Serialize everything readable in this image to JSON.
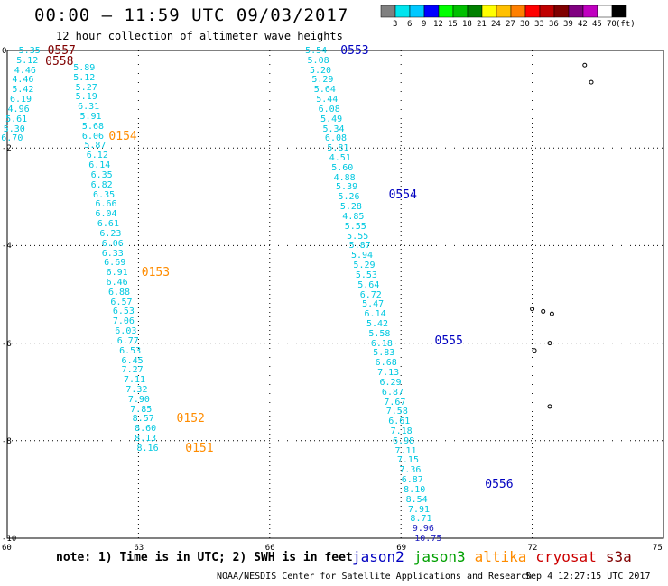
{
  "title": "00:00 – 11:59 UTC 09/03/2017",
  "subtitle": "12 hour collection of altimeter wave heights",
  "colorbar": {
    "unit_label": "(ft)",
    "ticks": [
      "3",
      "6",
      "9",
      "12",
      "15",
      "18",
      "21",
      "24",
      "27",
      "30",
      "33",
      "36",
      "39",
      "42",
      "45",
      "70"
    ],
    "colors": [
      "#808080",
      "#00e5ee",
      "#00c8ff",
      "#0000ff",
      "#00ff00",
      "#00c000",
      "#008000",
      "#ffff00",
      "#ffc000",
      "#ff8000",
      "#ff0000",
      "#c00000",
      "#800000",
      "#800080",
      "#c000c0",
      "#ffffff",
      "#000000"
    ]
  },
  "map": {
    "lon_min": 60,
    "lon_max": 75,
    "lat_min": -10,
    "lat_max": 0,
    "x_ticks": [
      "60",
      "63",
      "66",
      "69",
      "72",
      "75"
    ],
    "y_ticks": [
      "0",
      "-2",
      "-4",
      "-6",
      "-8",
      "-10"
    ],
    "x_tick_values": [
      60,
      63,
      66,
      69,
      72,
      75
    ],
    "y_tick_values": [
      0,
      -2,
      -4,
      -6,
      -8,
      -10
    ],
    "grid_color": "#000000"
  },
  "satellite_colors": {
    "jason2": "#0000c0",
    "jason3": "#00a000",
    "altika": "#ff8c00",
    "cryosat": "#cc0000",
    "s3a": "#800000",
    "value": "#00c8e0",
    "value_dark": "#2020c0"
  },
  "tracks": [
    {
      "color": "value",
      "points": [
        {
          "v": "5.35",
          "lon": 60.55,
          "lat": 0.0
        },
        {
          "v": "5.12",
          "lon": 60.5,
          "lat": -0.2
        },
        {
          "v": "4.46",
          "lon": 60.45,
          "lat": -0.4
        },
        {
          "v": "4.46",
          "lon": 60.4,
          "lat": -0.6
        },
        {
          "v": "5.42",
          "lon": 60.4,
          "lat": -0.8
        },
        {
          "v": "6.19",
          "lon": 60.35,
          "lat": -1.0
        },
        {
          "v": "4.96",
          "lon": 60.3,
          "lat": -1.2
        },
        {
          "v": "5.61",
          "lon": 60.25,
          "lat": -1.4
        },
        {
          "v": "5.30",
          "lon": 60.2,
          "lat": -1.6
        },
        {
          "v": "6.70",
          "lon": 60.15,
          "lat": -1.8
        }
      ]
    },
    {
      "color": "value",
      "points": [
        {
          "v": "5.89",
          "lon": 61.8,
          "lat": -0.35
        },
        {
          "v": "5.12",
          "lon": 61.8,
          "lat": -0.55
        },
        {
          "v": "5.27",
          "lon": 61.85,
          "lat": -0.75
        },
        {
          "v": "5.19",
          "lon": 61.85,
          "lat": -0.95
        },
        {
          "v": "6.31",
          "lon": 61.9,
          "lat": -1.15
        },
        {
          "v": "5.91",
          "lon": 61.95,
          "lat": -1.35
        },
        {
          "v": "5.68",
          "lon": 62.0,
          "lat": -1.55
        },
        {
          "v": "6.06",
          "lon": 62.0,
          "lat": -1.75
        },
        {
          "v": "5.87",
          "lon": 62.05,
          "lat": -1.95
        },
        {
          "v": "6.12",
          "lon": 62.1,
          "lat": -2.15
        },
        {
          "v": "6.14",
          "lon": 62.15,
          "lat": -2.35
        },
        {
          "v": "6.35",
          "lon": 62.2,
          "lat": -2.55
        },
        {
          "v": "6.82",
          "lon": 62.2,
          "lat": -2.75
        },
        {
          "v": "6.35",
          "lon": 62.25,
          "lat": -2.95
        },
        {
          "v": "6.66",
          "lon": 62.3,
          "lat": -3.15
        },
        {
          "v": "6.04",
          "lon": 62.3,
          "lat": -3.35
        },
        {
          "v": "6.61",
          "lon": 62.35,
          "lat": -3.55
        },
        {
          "v": "6.23",
          "lon": 62.4,
          "lat": -3.75
        },
        {
          "v": "6.06",
          "lon": 62.45,
          "lat": -3.95
        },
        {
          "v": "6.33",
          "lon": 62.45,
          "lat": -4.15
        },
        {
          "v": "6.69",
          "lon": 62.5,
          "lat": -4.35
        },
        {
          "v": "6.91",
          "lon": 62.55,
          "lat": -4.55
        },
        {
          "v": "6.46",
          "lon": 62.55,
          "lat": -4.75
        },
        {
          "v": "6.88",
          "lon": 62.6,
          "lat": -4.95
        },
        {
          "v": "6.57",
          "lon": 62.65,
          "lat": -5.15
        },
        {
          "v": "6.53",
          "lon": 62.7,
          "lat": -5.35
        },
        {
          "v": "7.06",
          "lon": 62.7,
          "lat": -5.55
        },
        {
          "v": "6.03",
          "lon": 62.75,
          "lat": -5.75
        },
        {
          "v": "6.77",
          "lon": 62.8,
          "lat": -5.95
        },
        {
          "v": "6.53",
          "lon": 62.85,
          "lat": -6.15
        },
        {
          "v": "6.45",
          "lon": 62.9,
          "lat": -6.35
        },
        {
          "v": "7.27",
          "lon": 62.9,
          "lat": -6.55
        },
        {
          "v": "7.11",
          "lon": 62.95,
          "lat": -6.75
        },
        {
          "v": "7.32",
          "lon": 63.0,
          "lat": -6.95
        },
        {
          "v": "7.90",
          "lon": 63.05,
          "lat": -7.15
        },
        {
          "v": "7.85",
          "lon": 63.1,
          "lat": -7.35
        },
        {
          "v": "8.57",
          "lon": 63.15,
          "lat": -7.55
        },
        {
          "v": "8.60",
          "lon": 63.2,
          "lat": -7.75
        },
        {
          "v": "8.13",
          "lon": 63.2,
          "lat": -7.95
        },
        {
          "v": "8.16",
          "lon": 63.25,
          "lat": -8.15
        }
      ]
    },
    {
      "color": "value",
      "points": [
        {
          "v": "5.54",
          "lon": 67.1,
          "lat": 0.0
        },
        {
          "v": "5.08",
          "lon": 67.15,
          "lat": -0.2
        },
        {
          "v": "5.20",
          "lon": 67.2,
          "lat": -0.4
        },
        {
          "v": "5.29",
          "lon": 67.25,
          "lat": -0.6
        },
        {
          "v": "5.64",
          "lon": 67.3,
          "lat": -0.8
        },
        {
          "v": "5.44",
          "lon": 67.35,
          "lat": -1.0
        },
        {
          "v": "6.08",
          "lon": 67.4,
          "lat": -1.2
        },
        {
          "v": "5.49",
          "lon": 67.45,
          "lat": -1.4
        },
        {
          "v": "5.34",
          "lon": 67.5,
          "lat": -1.6
        },
        {
          "v": "6.08",
          "lon": 67.55,
          "lat": -1.8
        },
        {
          "v": "5.81",
          "lon": 67.6,
          "lat": -2.0
        },
        {
          "v": "4.51",
          "lon": 67.65,
          "lat": -2.2
        },
        {
          "v": "5.60",
          "lon": 67.7,
          "lat": -2.4
        },
        {
          "v": "4.88",
          "lon": 67.75,
          "lat": -2.6
        },
        {
          "v": "5.39",
          "lon": 67.8,
          "lat": -2.8
        },
        {
          "v": "5.26",
          "lon": 67.85,
          "lat": -3.0
        },
        {
          "v": "5.28",
          "lon": 67.9,
          "lat": -3.2
        },
        {
          "v": "4.85",
          "lon": 67.95,
          "lat": -3.4
        },
        {
          "v": "5.55",
          "lon": 68.0,
          "lat": -3.6
        },
        {
          "v": "5.55",
          "lon": 68.05,
          "lat": -3.8
        },
        {
          "v": "5.87",
          "lon": 68.1,
          "lat": -4.0
        },
        {
          "v": "5.94",
          "lon": 68.15,
          "lat": -4.2
        },
        {
          "v": "5.29",
          "lon": 68.2,
          "lat": -4.4
        },
        {
          "v": "5.53",
          "lon": 68.25,
          "lat": -4.6
        },
        {
          "v": "5.64",
          "lon": 68.3,
          "lat": -4.8
        },
        {
          "v": "6.72",
          "lon": 68.35,
          "lat": -5.0
        },
        {
          "v": "5.47",
          "lon": 68.4,
          "lat": -5.2
        },
        {
          "v": "6.14",
          "lon": 68.45,
          "lat": -5.4
        },
        {
          "v": "5.42",
          "lon": 68.5,
          "lat": -5.6
        },
        {
          "v": "5.58",
          "lon": 68.55,
          "lat": -5.8
        },
        {
          "v": "6.18",
          "lon": 68.6,
          "lat": -6.0
        },
        {
          "v": "5.83",
          "lon": 68.65,
          "lat": -6.2
        },
        {
          "v": "6.68",
          "lon": 68.7,
          "lat": -6.4
        },
        {
          "v": "7.13",
          "lon": 68.75,
          "lat": -6.6
        },
        {
          "v": "6.29",
          "lon": 68.8,
          "lat": -6.8
        },
        {
          "v": "6.87",
          "lon": 68.85,
          "lat": -7.0
        },
        {
          "v": "7.67",
          "lon": 68.9,
          "lat": -7.2
        },
        {
          "v": "7.58",
          "lon": 68.95,
          "lat": -7.4
        },
        {
          "v": "6.61",
          "lon": 69.0,
          "lat": -7.6
        },
        {
          "v": "7.18",
          "lon": 69.05,
          "lat": -7.8
        },
        {
          "v": "6.98",
          "lon": 69.1,
          "lat": -8.0
        },
        {
          "v": "7.11",
          "lon": 69.15,
          "lat": -8.2
        },
        {
          "v": "7.15",
          "lon": 69.2,
          "lat": -8.4
        },
        {
          "v": "7.36",
          "lon": 69.25,
          "lat": -8.6
        },
        {
          "v": "6.87",
          "lon": 69.3,
          "lat": -8.8
        },
        {
          "v": "8.10",
          "lon": 69.35,
          "lat": -9.0
        },
        {
          "v": "8.54",
          "lon": 69.4,
          "lat": -9.2
        },
        {
          "v": "7.91",
          "lon": 69.45,
          "lat": -9.4
        },
        {
          "v": "8.71",
          "lon": 69.5,
          "lat": -9.6
        }
      ]
    },
    {
      "color": "value_dark",
      "points": [
        {
          "v": "9.96",
          "lon": 69.55,
          "lat": -9.8
        },
        {
          "v": "10.75",
          "lon": 69.6,
          "lat": -10.0
        }
      ]
    }
  ],
  "time_labels": [
    {
      "t": "0557",
      "sat": "s3a",
      "lon": 61.25,
      "lat": -0.0
    },
    {
      "t": "0558",
      "sat": "s3a",
      "lon": 61.2,
      "lat": -0.22
    },
    {
      "t": "0154",
      "sat": "altika",
      "lon": 62.65,
      "lat": -1.75
    },
    {
      "t": "0153",
      "sat": "altika",
      "lon": 63.4,
      "lat": -4.55
    },
    {
      "t": "0152",
      "sat": "altika",
      "lon": 64.2,
      "lat": -7.55
    },
    {
      "t": "0151",
      "sat": "altika",
      "lon": 64.4,
      "lat": -8.15
    },
    {
      "t": "0553",
      "sat": "jason2",
      "lon": 67.95,
      "lat": -0.0
    },
    {
      "t": "0554",
      "sat": "jason2",
      "lon": 69.05,
      "lat": -2.95
    },
    {
      "t": "0555",
      "sat": "jason2",
      "lon": 70.1,
      "lat": -5.95
    },
    {
      "t": "0556",
      "sat": "jason2",
      "lon": 71.25,
      "lat": -8.9
    }
  ],
  "islands": [
    {
      "lon": 73.2,
      "lat": -0.3
    },
    {
      "lon": 73.35,
      "lat": -0.65
    },
    {
      "lon": 72.0,
      "lat": -5.3
    },
    {
      "lon": 72.25,
      "lat": -5.35
    },
    {
      "lon": 72.45,
      "lat": -5.4
    },
    {
      "lon": 72.4,
      "lat": -6.0
    },
    {
      "lon": 72.05,
      "lat": -6.15
    },
    {
      "lon": 72.4,
      "lat": -7.3
    }
  ],
  "note": "note: 1) Time is in UTC; 2) SWH is in feet",
  "satellites": [
    {
      "name": "jason2",
      "key": "jason2"
    },
    {
      "name": "jason3",
      "key": "jason3"
    },
    {
      "name": "altika",
      "key": "altika"
    },
    {
      "name": "cryosat",
      "key": "cryosat"
    },
    {
      "name": "s3a",
      "key": "s3a"
    }
  ],
  "credit": "NOAA/NESDIS Center for Satellite Applications and Research",
  "credit_time": "Sep  4 12:27:15 UTC 2017"
}
